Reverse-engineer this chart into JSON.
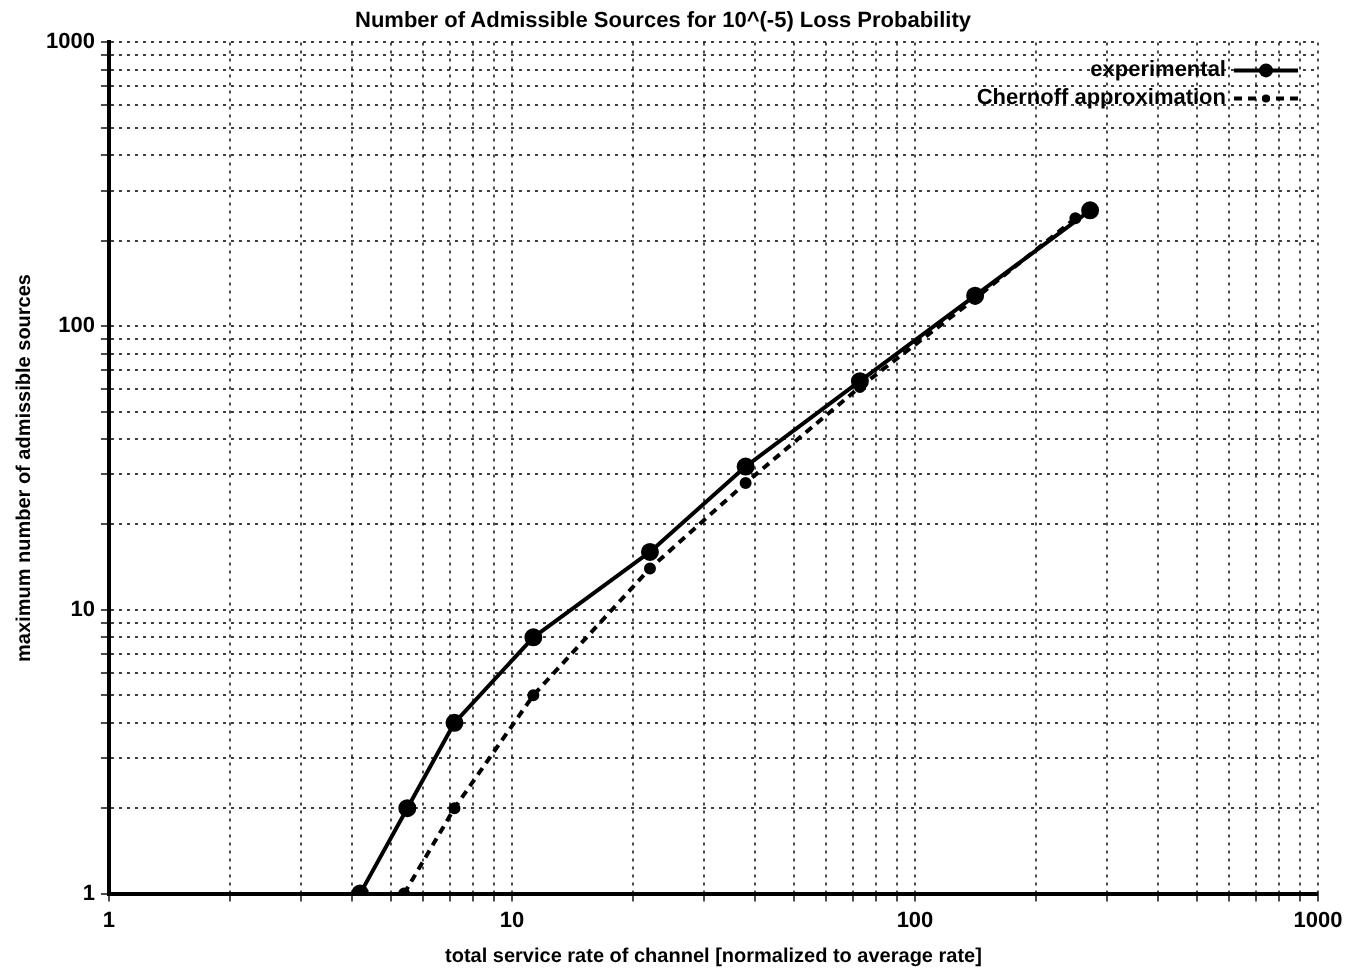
{
  "chart_data": {
    "type": "line",
    "title": "Number of Admissible Sources for 10^(-5) Loss Probability",
    "xlabel": "total service rate of channel [normalized to average rate]",
    "ylabel": "maximum number of admissible sources",
    "log": "xy",
    "xlim": [
      1,
      1000
    ],
    "ylim": [
      1,
      1000
    ],
    "xticks": [
      1,
      {
        "value": 2,
        "label": null
      },
      {
        "value": 3,
        "label": null
      },
      {
        "value": 4,
        "label": null
      },
      {
        "value": 5,
        "label": null
      },
      {
        "value": 6,
        "label": null
      },
      {
        "value": 7,
        "label": null
      },
      {
        "value": 8,
        "label": null
      },
      {
        "value": 9,
        "label": null
      },
      10,
      {
        "value": 20,
        "label": null
      },
      {
        "value": 30,
        "label": null
      },
      {
        "value": 40,
        "label": null
      },
      {
        "value": 50,
        "label": null
      },
      {
        "value": 60,
        "label": null
      },
      {
        "value": 70,
        "label": null
      },
      {
        "value": 80,
        "label": null
      },
      {
        "value": 90,
        "label": null
      },
      100,
      {
        "value": 200,
        "label": null
      },
      {
        "value": 300,
        "label": null
      },
      {
        "value": 400,
        "label": null
      },
      {
        "value": 500,
        "label": null
      },
      {
        "value": 600,
        "label": null
      },
      {
        "value": 700,
        "label": null
      },
      {
        "value": 800,
        "label": null
      },
      {
        "value": 900,
        "label": null
      },
      1000
    ],
    "yticks": [
      1,
      {
        "value": 2,
        "label": null
      },
      {
        "value": 3,
        "label": null
      },
      {
        "value": 4,
        "label": null
      },
      {
        "value": 5,
        "label": null
      },
      {
        "value": 6,
        "label": null
      },
      {
        "value": 7,
        "label": null
      },
      {
        "value": 8,
        "label": null
      },
      {
        "value": 9,
        "label": null
      },
      10,
      {
        "value": 20,
        "label": null
      },
      {
        "value": 30,
        "label": null
      },
      {
        "value": 40,
        "label": null
      },
      {
        "value": 50,
        "label": null
      },
      {
        "value": 60,
        "label": null
      },
      {
        "value": 70,
        "label": null
      },
      {
        "value": 80,
        "label": null
      },
      {
        "value": 90,
        "label": null
      },
      100,
      {
        "value": 200,
        "label": null
      },
      {
        "value": 300,
        "label": null
      },
      {
        "value": 400,
        "label": null
      },
      {
        "value": 500,
        "label": null
      },
      {
        "value": 600,
        "label": null
      },
      {
        "value": 700,
        "label": null
      },
      {
        "value": 800,
        "label": null
      },
      {
        "value": 900,
        "label": null
      },
      1000
    ],
    "grid": true,
    "legend": "top right",
    "marker": "circle",
    "series": [
      {
        "name": "experimental",
        "color": "#000000",
        "line_style": "solid",
        "x": [
          4.2,
          5.5,
          7.2,
          11.3,
          22,
          38,
          73,
          141,
          272
        ],
        "values": [
          1,
          2,
          4,
          8,
          16,
          32,
          64,
          128,
          256
        ]
      },
      {
        "name": "Chernoff approximation",
        "color": "#000000",
        "line_style": "dashed",
        "x": [
          5.4,
          7.2,
          11.3,
          22,
          38,
          73,
          141,
          250
        ],
        "values": [
          1,
          2,
          5,
          14,
          28,
          61,
          125,
          240
        ]
      }
    ]
  }
}
